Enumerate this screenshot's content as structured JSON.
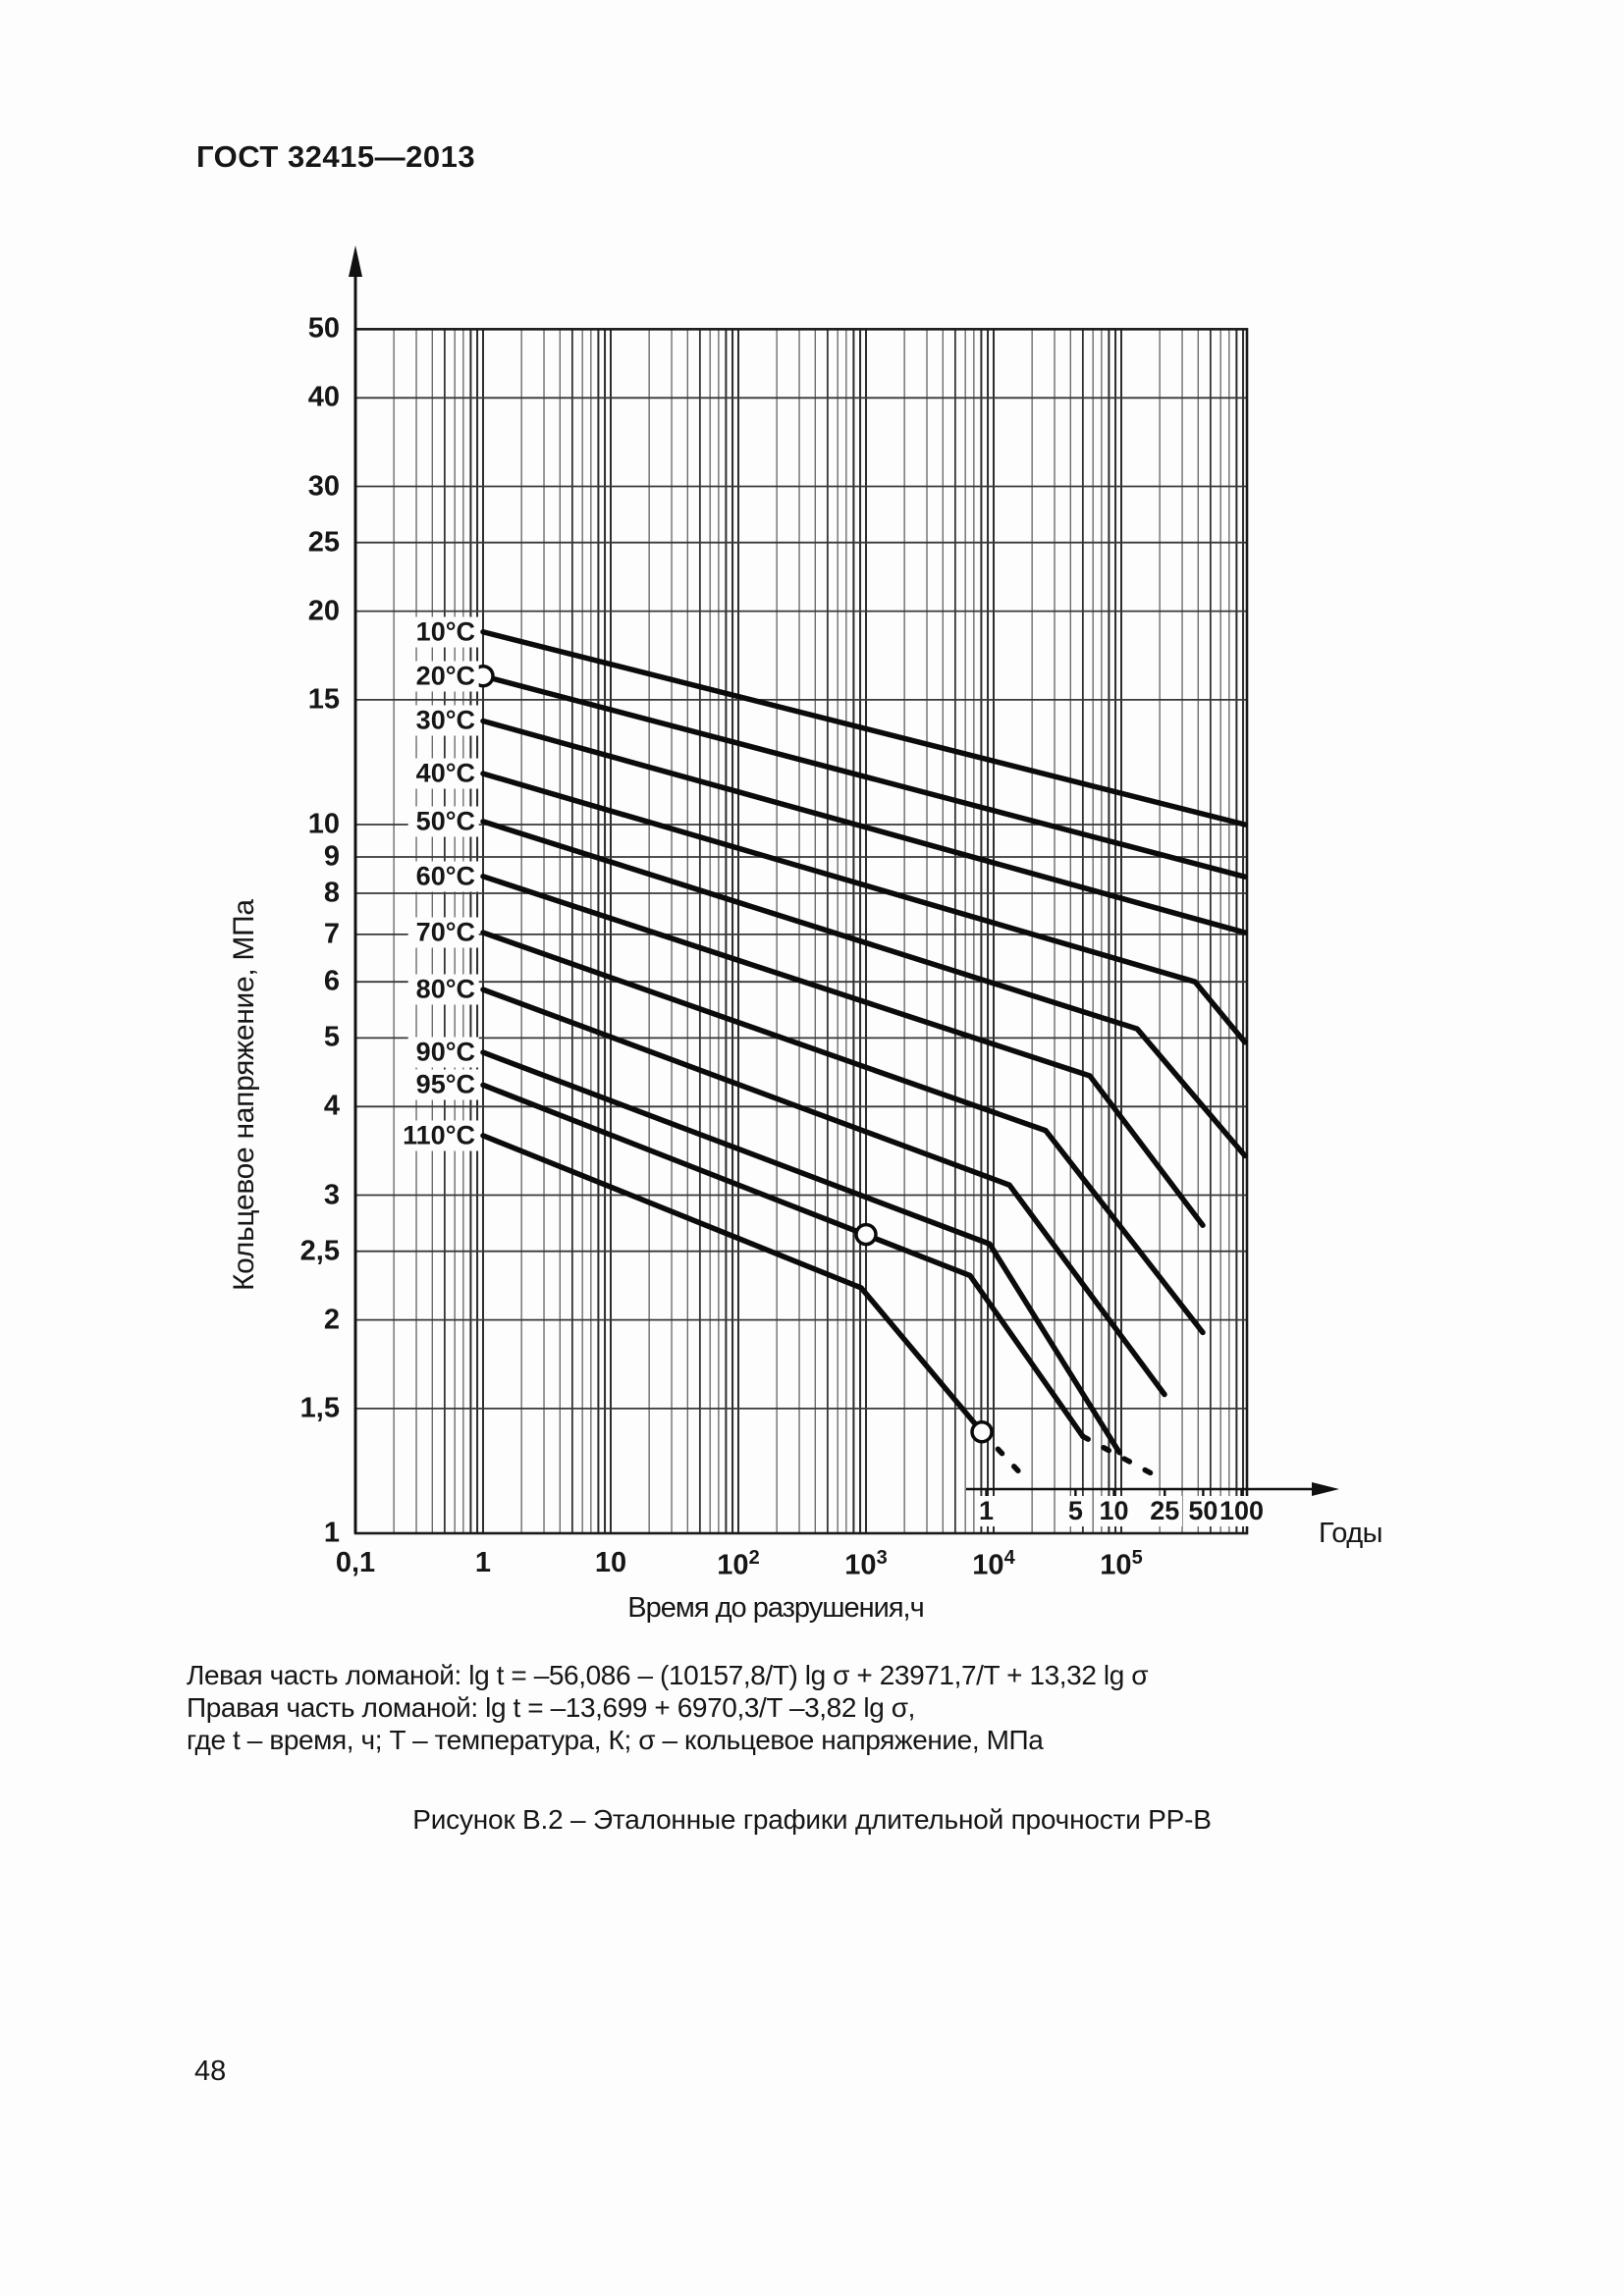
{
  "page": {
    "standard": "ГОСТ 32415—2013",
    "page_number": "48"
  },
  "figure_caption": "Рисунок В.2 – Эталонные графики длительной прочности PP-B",
  "formulas": {
    "line1": "Левая часть ломаной: lg t = –56,086 – (10157,8/T) lg σ + 23971,7/T + 13,32 lg σ",
    "line2": "Правая часть ломаной: lg t = –13,699 + 6970,3/T –3,82 lg σ,",
    "line3": "где t – время, ч; T – температура, К; σ – кольцевое напряжение, МПа"
  },
  "chart_data": {
    "type": "line",
    "title": "Эталонные графики длительной прочности PP-B",
    "xlabel": "Время до разрушения,ч",
    "ylabel": "Кольцевое напряжение, МПа",
    "x_scale": "log",
    "y_scale": "log",
    "xlim": [
      0.1,
      1000000
    ],
    "ylim": [
      1,
      50
    ],
    "grid": true,
    "x_ticks": [
      {
        "text": "0,1",
        "exp": "",
        "value": 0.1
      },
      {
        "text": "1",
        "exp": "",
        "value": 1
      },
      {
        "text": "10",
        "exp": "",
        "value": 10
      },
      {
        "text": "10",
        "exp": "2",
        "value": 100
      },
      {
        "text": "10",
        "exp": "3",
        "value": 1000
      },
      {
        "text": "10",
        "exp": "4",
        "value": 10000
      },
      {
        "text": "10",
        "exp": "5",
        "value": 100000
      }
    ],
    "y_ticks": [
      {
        "text": "50",
        "value": 50
      },
      {
        "text": "40",
        "value": 40
      },
      {
        "text": "30",
        "value": 30
      },
      {
        "text": "25",
        "value": 25
      },
      {
        "text": "20",
        "value": 20
      },
      {
        "text": "15",
        "value": 15
      },
      {
        "text": "10",
        "value": 10
      },
      {
        "text": "9",
        "value": 9
      },
      {
        "text": "8",
        "value": 8
      },
      {
        "text": "7",
        "value": 7
      },
      {
        "text": "6",
        "value": 6
      },
      {
        "text": "5",
        "value": 5
      },
      {
        "text": "4",
        "value": 4
      },
      {
        "text": "3",
        "value": 3
      },
      {
        "text": "2,5",
        "value": 2.5
      },
      {
        "text": "2",
        "value": 2
      },
      {
        "text": "1,5",
        "value": 1.5
      },
      {
        "text": "1",
        "value": 1
      }
    ],
    "years_axis": {
      "label": "Годы",
      "hours_per_year": 8760,
      "ticks": [
        {
          "text": "1",
          "value": 1
        },
        {
          "text": "5",
          "value": 5
        },
        {
          "text": "10",
          "value": 10
        },
        {
          "text": "25",
          "value": 25
        },
        {
          "text": "50",
          "value": 50
        },
        {
          "text": "100",
          "value": 100
        }
      ]
    },
    "series": [
      {
        "name": "10°C",
        "points": [
          [
            1,
            18.7
          ],
          [
            930000,
            10.0
          ]
        ],
        "dashed": [],
        "markers": []
      },
      {
        "name": "20°C",
        "points": [
          [
            1,
            16.2
          ],
          [
            930000,
            8.44
          ]
        ],
        "dashed": [],
        "markers": [
          [
            1,
            16.2
          ]
        ]
      },
      {
        "name": "30°C",
        "points": [
          [
            1,
            14.0
          ],
          [
            930000,
            7.04
          ]
        ],
        "dashed": [],
        "markers": []
      },
      {
        "name": "40°C",
        "points": [
          [
            1,
            11.8
          ],
          [
            378000,
            6.0
          ],
          [
            930000,
            4.93
          ]
        ],
        "dashed": [],
        "markers": []
      },
      {
        "name": "50°C",
        "points": [
          [
            1,
            10.1
          ],
          [
            133000,
            5.15
          ],
          [
            930000,
            3.41
          ]
        ],
        "dashed": [],
        "markers": []
      },
      {
        "name": "60°C",
        "points": [
          [
            1,
            8.45
          ],
          [
            56700,
            4.42
          ],
          [
            435000,
            2.72
          ]
        ],
        "dashed": [],
        "markers": []
      },
      {
        "name": "70°C",
        "points": [
          [
            1,
            7.04
          ],
          [
            25600,
            3.7
          ],
          [
            435000,
            1.92
          ]
        ],
        "dashed": [],
        "markers": []
      },
      {
        "name": "80°C",
        "points": [
          [
            1,
            5.85
          ],
          [
            13300,
            3.1
          ],
          [
            218000,
            1.57
          ]
        ],
        "dashed": [],
        "markers": []
      },
      {
        "name": "90°C",
        "points": [
          [
            1,
            4.77
          ],
          [
            9300,
            2.56
          ],
          [
            96600,
            1.3
          ]
        ],
        "dashed": [],
        "markers": []
      },
      {
        "name": "95°C",
        "points": [
          [
            1,
            4.29
          ],
          [
            6530,
            2.31
          ],
          [
            50000,
            1.37
          ]
        ],
        "dashed": [
          [
            50000,
            1.37
          ],
          [
            179000,
            1.21
          ]
        ],
        "markers": [
          [
            1000,
            2.64
          ]
        ]
      },
      {
        "name": "110°C",
        "points": [
          [
            1,
            3.64
          ],
          [
            916,
            2.22
          ],
          [
            8090,
            1.39
          ]
        ],
        "dashed": [
          [
            8090,
            1.39
          ],
          [
            18900,
            1.18
          ]
        ],
        "markers": [
          [
            8090,
            1.39
          ]
        ]
      }
    ]
  }
}
